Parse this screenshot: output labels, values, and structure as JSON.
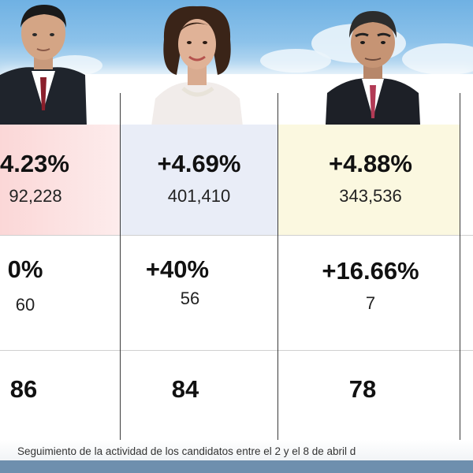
{
  "candidates": [
    {
      "photo": "candidate-1-photo",
      "row1_percent": "4.23%",
      "row1_count": "92,228",
      "row2_percent": "0%",
      "row2_count": "60",
      "row3_value": "86",
      "column_color": "#fbd7d7"
    },
    {
      "photo": "candidate-2-photo",
      "row1_percent": "+4.69%",
      "row1_count": "401,410",
      "row2_percent": "+40%",
      "row2_count": "56",
      "row3_value": "84",
      "column_color": "#e9edf7"
    },
    {
      "photo": "candidate-3-photo",
      "row1_percent": "+4.88%",
      "row1_count": "343,536",
      "row2_percent": "+16.66%",
      "row2_count": "7",
      "row3_value": "78",
      "column_color": "#fbf8e0"
    }
  ],
  "caption": "Seguimiento de la actividad de los candidatos entre el 2 y el 8 de abril d",
  "colors": {
    "sky": "#6fb1e3",
    "grid_line": "#3a3a3a",
    "text": "#111111"
  }
}
